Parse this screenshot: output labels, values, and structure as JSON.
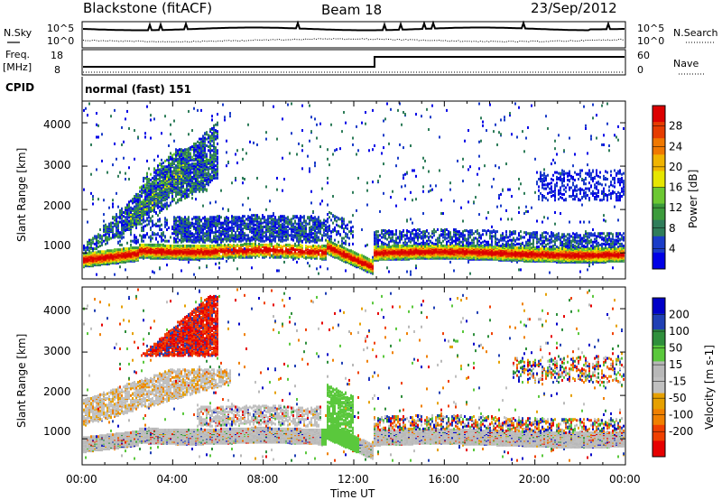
{
  "header": {
    "station": "Blackstone (fitACF)",
    "beam": "Beam 18",
    "date": "23/Sep/2012"
  },
  "noise_panel": {
    "left_label": "N.Sky",
    "right_label": "N.Search",
    "tick_top": "10^5",
    "tick_bottom": "10^0"
  },
  "freq_panel": {
    "left_label_line1": "Freq.",
    "left_label_line2": "[MHz]",
    "left_ticks": [
      "18",
      "8"
    ],
    "right_label": "Nave",
    "right_ticks": [
      "60",
      "0"
    ]
  },
  "cpid": {
    "label": "CPID",
    "value": "normal (fast) 151"
  },
  "xaxis": {
    "label": "Time UT",
    "ticks": [
      "00:00",
      "04:00",
      "08:00",
      "12:00",
      "16:00",
      "20:00",
      "00:00"
    ]
  },
  "colors": {
    "power": [
      "#0000e6",
      "#1a3cc8",
      "#2f7d5a",
      "#3c9b3c",
      "#6cc832",
      "#e6e600",
      "#f0b400",
      "#f07800",
      "#e63c00",
      "#dc0000"
    ],
    "velocity": [
      "#e60000",
      "#f04000",
      "#f08000",
      "#e6a000",
      "#c0c0c0",
      "#b8b8b8",
      "#5ac83c",
      "#2f8f3c",
      "#2040b4",
      "#0000c8"
    ]
  },
  "chart_data": [
    {
      "type": "heatmap",
      "title": "Power",
      "ylabel": "Slant Range [km]",
      "xlabel": "Time UT",
      "xlim": [
        0,
        24
      ],
      "ylim": [
        400,
        4500
      ],
      "yticks": [
        "1000",
        "2000",
        "3000",
        "4000"
      ],
      "colorbar": {
        "label": "Power [dB]",
        "ticks": [
          "4",
          "8",
          "12",
          "16",
          "20",
          "24",
          "28"
        ]
      }
    },
    {
      "type": "heatmap",
      "title": "Velocity",
      "ylabel": "Slant Range [km]",
      "xlabel": "Time UT",
      "xlim": [
        0,
        24
      ],
      "ylim": [
        400,
        4500
      ],
      "yticks": [
        "1000",
        "2000",
        "3000",
        "4000"
      ],
      "colorbar": {
        "label": "Velocity [m s-1]",
        "ticks": [
          "200",
          "100",
          "50",
          "15",
          "-15",
          "-50",
          "-100",
          "-200"
        ]
      }
    }
  ]
}
